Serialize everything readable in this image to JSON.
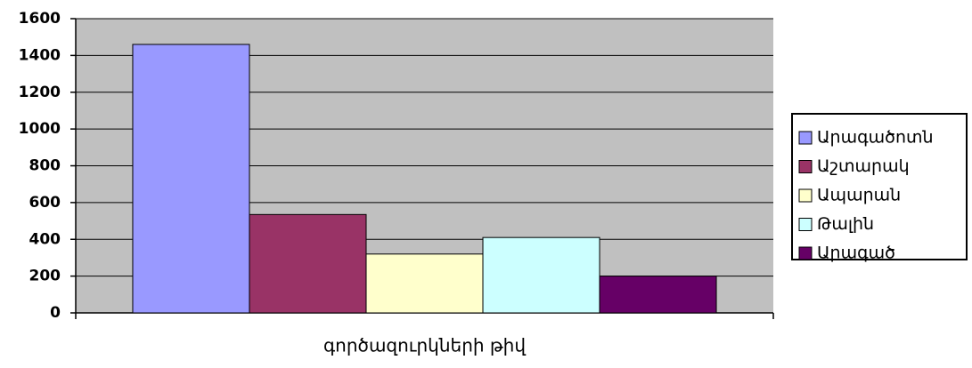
{
  "chart_data": {
    "type": "bar",
    "categories": [
      "գործազուրկների թիվ"
    ],
    "series": [
      {
        "name": "Արագածոտն",
        "color": "#9999ff",
        "values": [
          1460
        ]
      },
      {
        "name": "Աշտարակ",
        "color": "#993366",
        "values": [
          535
        ]
      },
      {
        "name": "Ապարան",
        "color": "#ffffcc",
        "values": [
          320
        ]
      },
      {
        "name": "Թալին",
        "color": "#ccffff",
        "values": [
          410
        ]
      },
      {
        "name": "Արագած",
        "color": "#660066",
        "values": [
          200
        ]
      }
    ],
    "ylim": [
      0,
      1600
    ],
    "yticks": [
      0,
      200,
      400,
      600,
      800,
      1000,
      1200,
      1400,
      1600
    ],
    "grid": true,
    "legend": "right"
  }
}
